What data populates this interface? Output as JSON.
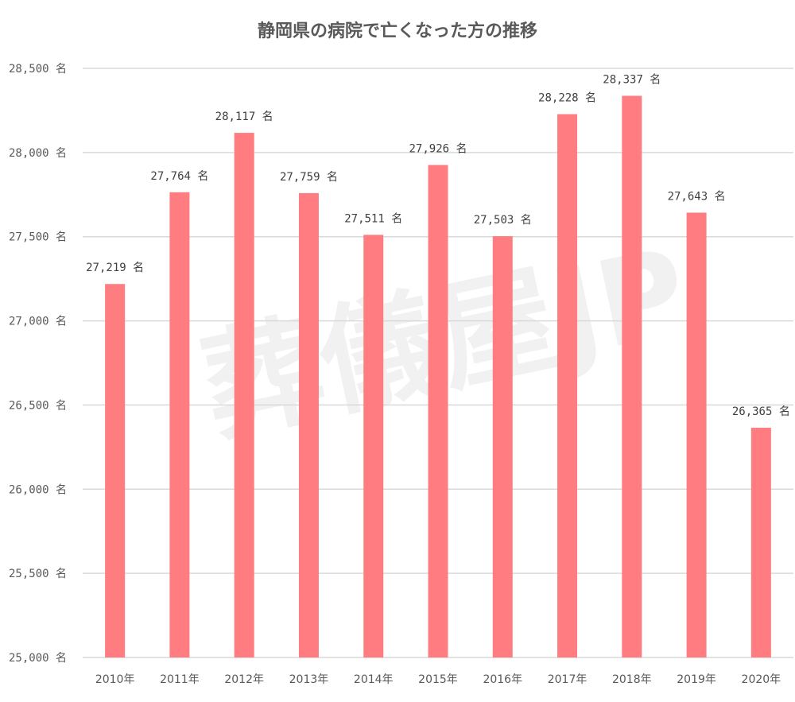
{
  "chart_data": {
    "type": "bar",
    "title": "静岡県の病院で亡くなった方の推移",
    "categories": [
      "2010年",
      "2011年",
      "2012年",
      "2013年",
      "2014年",
      "2015年",
      "2016年",
      "2017年",
      "2018年",
      "2019年",
      "2020年"
    ],
    "values": [
      27219,
      27764,
      28117,
      27759,
      27511,
      27926,
      27503,
      28228,
      28337,
      27643,
      26365
    ],
    "value_labels": [
      "27,219 名",
      "27,764 名",
      "28,117 名",
      "27,759 名",
      "27,511 名",
      "27,926 名",
      "27,503 名",
      "28,228 名",
      "28,337 名",
      "27,643 名",
      "26,365 名"
    ],
    "ylim": [
      25000,
      28500
    ],
    "yticks": [
      25000,
      25500,
      26000,
      26500,
      27000,
      27500,
      28000,
      28500
    ],
    "ytick_labels": [
      "25,000 名",
      "25,500 名",
      "26,000 名",
      "26,500 名",
      "27,000 名",
      "27,500 名",
      "28,000 名",
      "28,500 名"
    ],
    "xlabel": "",
    "ylabel": "",
    "grid": true,
    "legend": "none",
    "colors": {
      "bar": "#FF7C80",
      "grid": "#D9D9D9",
      "text": "#595959"
    }
  },
  "watermark": "葬儀屋JP"
}
